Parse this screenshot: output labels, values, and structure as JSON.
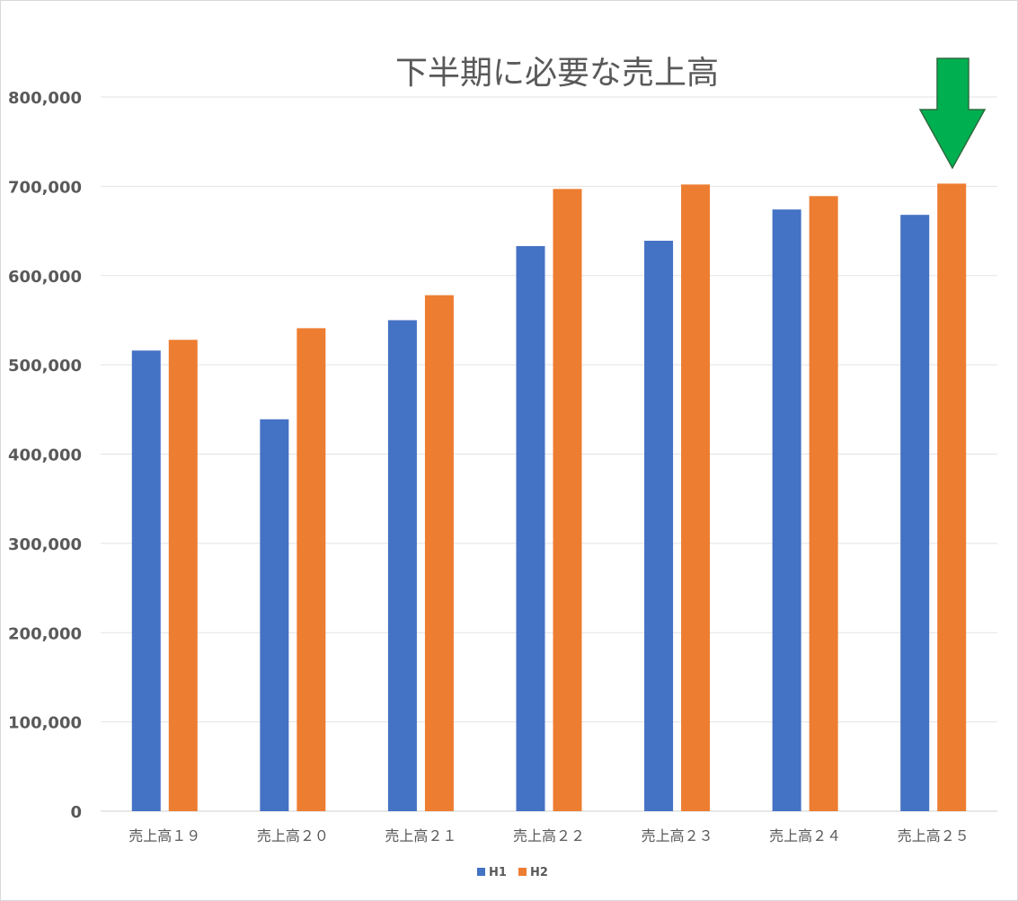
{
  "chart_data": {
    "type": "bar",
    "title": "下半期に必要な売上高",
    "categories": [
      "売上高１９",
      "売上高２０",
      "売上高２１",
      "売上高２２",
      "売上高２３",
      "売上高２４",
      "売上高２５"
    ],
    "series": [
      {
        "name": "H1",
        "color": "#4472c4",
        "values": [
          516000,
          439000,
          550000,
          633000,
          639000,
          674000,
          668000
        ]
      },
      {
        "name": "H2",
        "color": "#ed7d31",
        "values": [
          528000,
          541000,
          578000,
          697000,
          702000,
          689000,
          703000
        ]
      }
    ],
    "ylim": [
      0,
      800000
    ],
    "yticks": [
      0,
      100000,
      200000,
      300000,
      400000,
      500000,
      600000,
      700000,
      800000
    ],
    "ytick_labels": [
      "0",
      "100,000",
      "200,000",
      "300,000",
      "400,000",
      "500,000",
      "600,000",
      "700,000",
      "800,000"
    ],
    "grid": true,
    "legend": "bottom",
    "annotation": {
      "shape": "down-arrow",
      "color": "#00b050",
      "points_to_category": "売上高２５"
    }
  }
}
